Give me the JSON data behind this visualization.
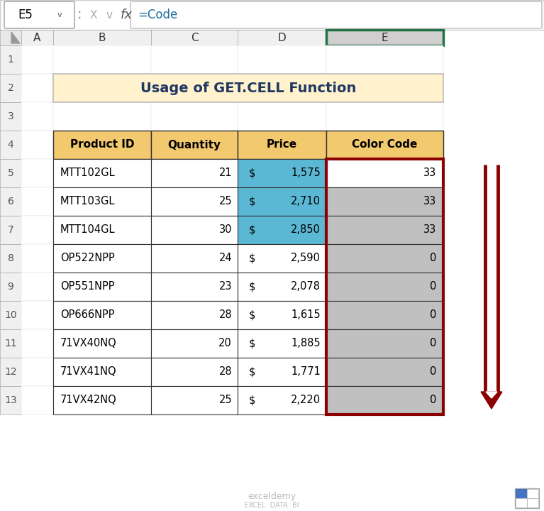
{
  "title": "Usage of GET.CELL Function",
  "title_bg": "#FFF2CC",
  "title_color": "#1F3864",
  "formula_bar_cell": "E5",
  "formula_bar_formula": "=Code",
  "col_headers": [
    "A",
    "B",
    "C",
    "D",
    "E"
  ],
  "row_numbers": [
    1,
    2,
    3,
    4,
    5,
    6,
    7,
    8,
    9,
    10,
    11,
    12,
    13
  ],
  "table_headers": [
    "Product ID",
    "Quantity",
    "Price",
    "Color Code"
  ],
  "products": [
    "MTT102GL",
    "MTT103GL",
    "MTT104GL",
    "OP522NPP",
    "OP551NPP",
    "OP666NPP",
    "71VX40NQ",
    "71VX41NQ",
    "71VX42NQ"
  ],
  "quantities": [
    21,
    25,
    30,
    24,
    23,
    28,
    20,
    28,
    25
  ],
  "prices": [
    "1,575",
    "2,710",
    "2,850",
    "2,590",
    "2,078",
    "1,615",
    "1,885",
    "1,771",
    "2,220"
  ],
  "color_codes": [
    33,
    33,
    33,
    0,
    0,
    0,
    0,
    0,
    0
  ],
  "price_bg_blue_rows": [
    0,
    1,
    2
  ],
  "header_bg": "#F2C96E",
  "blue_cell_color": "#5BB8D4",
  "gray_cell_color": "#C0C0C0",
  "white_cell_color": "#FFFFFF",
  "highlight_border_color": "#8B0000",
  "arrow_color": "#8B0000",
  "bg_color": "#FFFFFF",
  "col_e_header_bg": "#D0CECE",
  "active_col_header_border": "#217346",
  "normal_col_header_bg": "#F0F0F0",
  "fig_w": 7.67,
  "fig_h": 7.2,
  "dpi": 100
}
